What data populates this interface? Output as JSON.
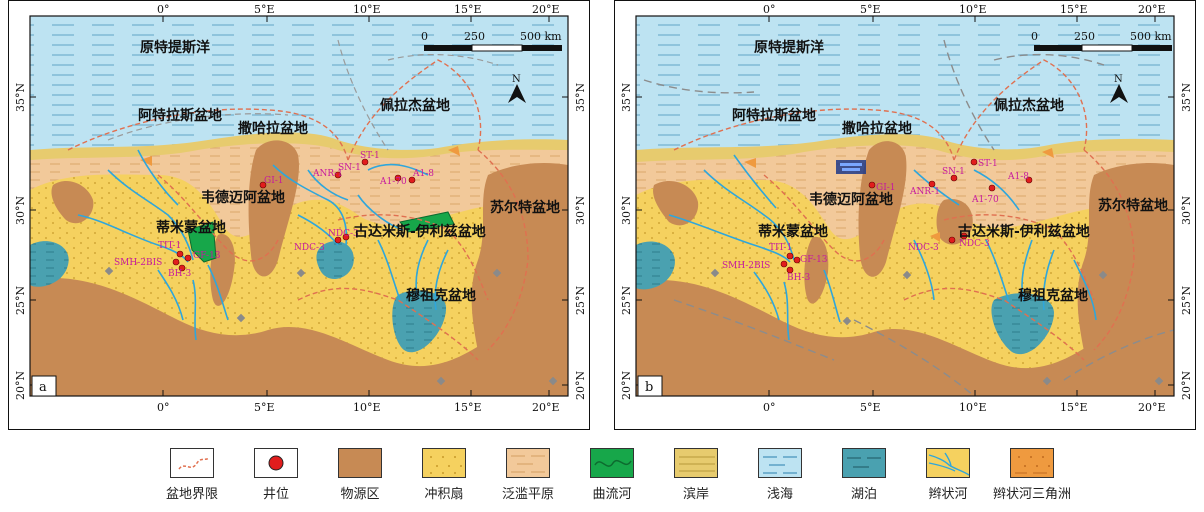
{
  "colors": {
    "sea": "#bde3f2",
    "sea_dash": "#8fc4dc",
    "fan": "#f5d15f",
    "floodplain": "#f2c99a",
    "source": "#c78a54",
    "meander": "#17a74a",
    "shore": "#e7cb6e",
    "lake": "#4aa1b0",
    "braided": "#2fa6db",
    "delta": "#ef9a3f",
    "well": "#e11d1d",
    "boundary": "#e07050",
    "label_purple": "#c61a9e"
  },
  "panels": [
    {
      "id": "a",
      "letter": "a",
      "lon_top": [
        "0°",
        "5°E",
        "10°E",
        "15°E",
        "20°E"
      ],
      "lon_bottom": [
        "0°",
        "5°E",
        "10°E",
        "15°E",
        "20°E"
      ],
      "lat_left": [
        "35°N",
        "30°N",
        "25°N",
        "20°N"
      ],
      "lat_right": [
        "35°N",
        "30°N",
        "25°N",
        "20°N"
      ],
      "scale": {
        "ticks": [
          "0",
          "250",
          "500 km"
        ]
      },
      "north": "N",
      "basins": [
        {
          "name": "原特提斯洋"
        },
        {
          "name": "阿特拉斯盆地"
        },
        {
          "name": "撒哈拉盆地"
        },
        {
          "name": "佩拉杰盆地"
        },
        {
          "name": "韦德迈阿盆地"
        },
        {
          "name": "蒂米蒙盆地"
        },
        {
          "name": "古达米斯-伊利兹盆地"
        },
        {
          "name": "苏尔特盆地"
        },
        {
          "name": "穆祖克盆地"
        }
      ],
      "wells": [
        {
          "name": "ST-1"
        },
        {
          "name": "SN-1"
        },
        {
          "name": "ANR-1"
        },
        {
          "name": "A1-70"
        },
        {
          "name": "A1-8"
        },
        {
          "name": "GI-1"
        },
        {
          "name": "NDC-3"
        },
        {
          "name": "NDC-3"
        },
        {
          "name": "TIT-1"
        },
        {
          "name": "GF-13"
        },
        {
          "name": "SMH-2BIS"
        },
        {
          "name": "BH-3"
        }
      ]
    },
    {
      "id": "b",
      "letter": "b",
      "lon_top": [
        "0°",
        "5°E",
        "10°E",
        "15°E",
        "20°E"
      ],
      "lon_bottom": [
        "0°",
        "5°E",
        "10°E",
        "15°E",
        "20°E"
      ],
      "lat_left": [
        "35°N",
        "30°N",
        "25°N",
        "20°N"
      ],
      "lat_right": [
        "35°N",
        "30°N",
        "25°N",
        "20°N"
      ],
      "scale": {
        "ticks": [
          "0",
          "250",
          "500 km"
        ]
      },
      "north": "N",
      "basins": [
        {
          "name": "原特提斯洋"
        },
        {
          "name": "阿特拉斯盆地"
        },
        {
          "name": "撒哈拉盆地"
        },
        {
          "name": "佩拉杰盆地"
        },
        {
          "name": "韦德迈阿盆地"
        },
        {
          "name": "蒂米蒙盆地"
        },
        {
          "name": "古达米斯-伊利兹盆地"
        },
        {
          "name": "苏尔特盆地"
        },
        {
          "name": "穆祖克盆地"
        }
      ],
      "wells": [
        {
          "name": "ST-1"
        },
        {
          "name": "SN-1"
        },
        {
          "name": "ANR-1"
        },
        {
          "name": "A1-8"
        },
        {
          "name": "A1-70"
        },
        {
          "name": "GI-1"
        },
        {
          "name": "NDC-3"
        },
        {
          "name": "NDC-3"
        },
        {
          "name": "TIT-1"
        },
        {
          "name": "GF-13"
        },
        {
          "name": "SMH-2BIS"
        },
        {
          "name": "BH-3"
        }
      ]
    }
  ],
  "legend": [
    {
      "label": "盆地界限",
      "swatch": "boundary"
    },
    {
      "label": "井位",
      "swatch": "well"
    },
    {
      "label": "物源区",
      "swatch": "source"
    },
    {
      "label": "冲积扇",
      "swatch": "fan"
    },
    {
      "label": "泛滥平原",
      "swatch": "floodplain"
    },
    {
      "label": "曲流河",
      "swatch": "meander"
    },
    {
      "label": "滨岸",
      "swatch": "shore"
    },
    {
      "label": "浅海",
      "swatch": "sea"
    },
    {
      "label": "湖泊",
      "swatch": "lake"
    },
    {
      "label": "辫状河",
      "swatch": "braided"
    },
    {
      "label": "辫状河三角洲",
      "swatch": "delta"
    }
  ]
}
